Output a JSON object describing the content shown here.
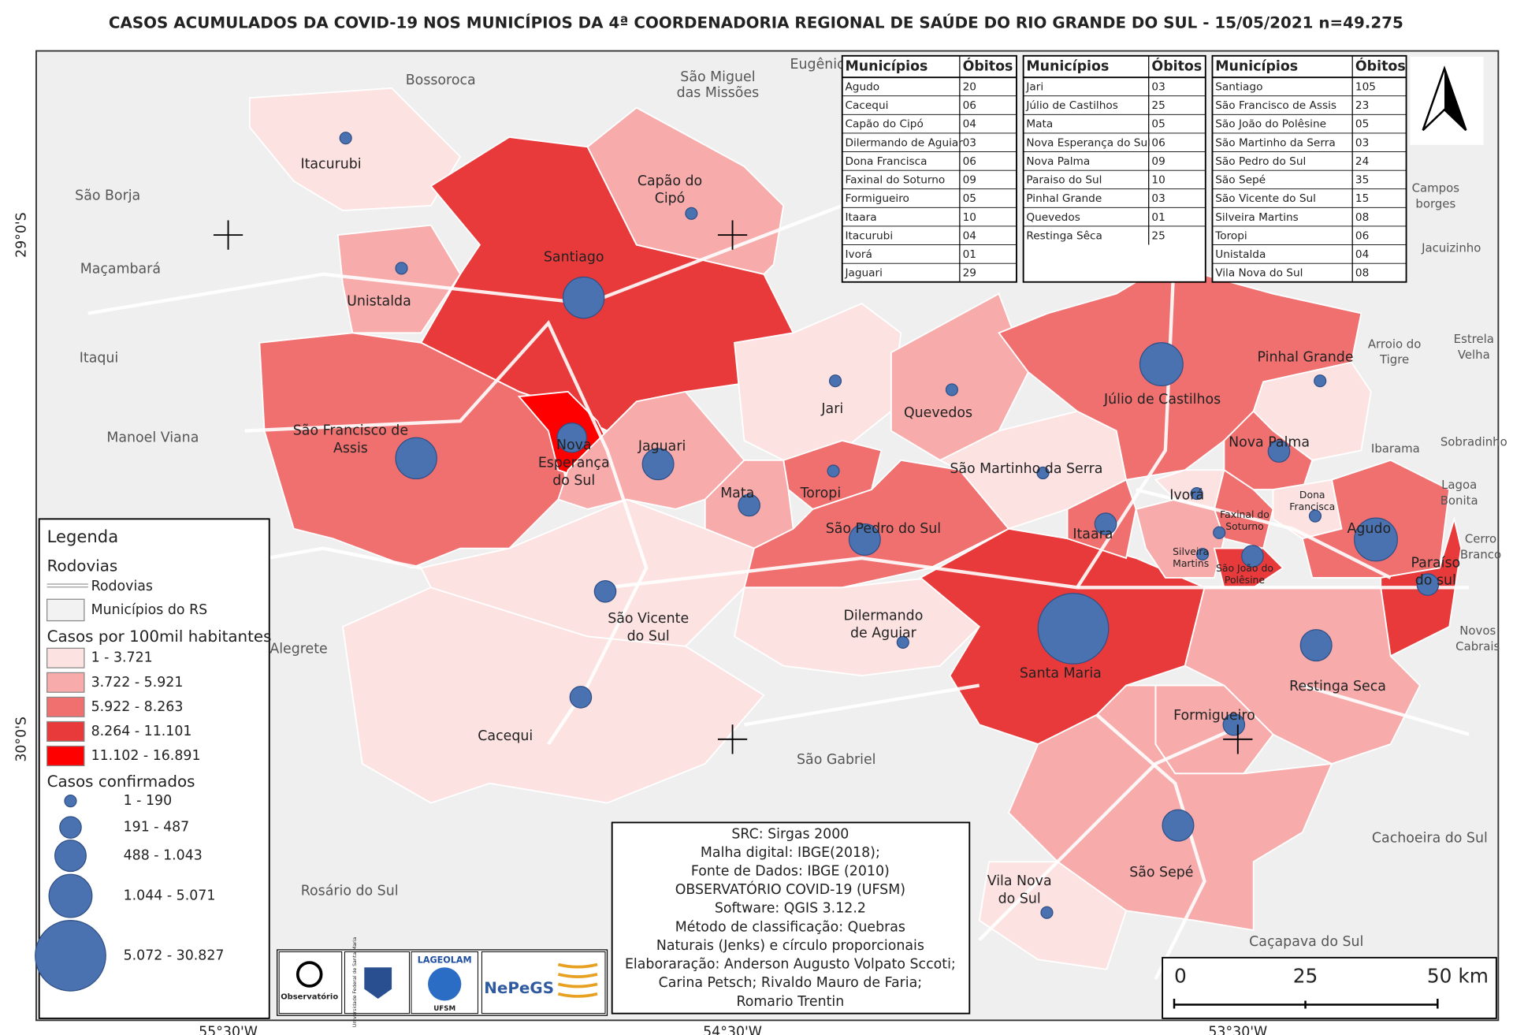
{
  "title": "CASOS ACUMULADOS DA COVID-19 NOS MUNICÍPIOS DA 4ª COORDENADORIA REGIONAL DE SAÚDE DO RIO GRANDE DO SUL - 15/05/2021 n=49.275",
  "tables": [
    {
      "headers": [
        "Municípios",
        "Óbitos"
      ],
      "rows": [
        [
          "Agudo",
          "20"
        ],
        [
          "Cacequi",
          "06"
        ],
        [
          "Capão do Cipó",
          "04"
        ],
        [
          "Dilermando de Aguiar",
          "03"
        ],
        [
          "Dona Francisca",
          "06"
        ],
        [
          "Faxinal do Soturno",
          "09"
        ],
        [
          "Formigueiro",
          "05"
        ],
        [
          "Itaara",
          "10"
        ],
        [
          "Itacurubi",
          "04"
        ],
        [
          "Ivorá",
          "01"
        ],
        [
          "Jaguari",
          "29"
        ]
      ]
    },
    {
      "headers": [
        "Municípios",
        "Óbitos"
      ],
      "rows": [
        [
          "Jari",
          "03"
        ],
        [
          "Júlio de Castilhos",
          "25"
        ],
        [
          "Mata",
          "05"
        ],
        [
          "Nova Esperança do Sul",
          "06"
        ],
        [
          "Nova Palma",
          "09"
        ],
        [
          "Paraiso do Sul",
          "10"
        ],
        [
          "Pinhal Grande",
          "03"
        ],
        [
          "Quevedos",
          "01"
        ],
        [
          "Restinga Sêca",
          "25"
        ]
      ]
    },
    {
      "headers": [
        "Municípios",
        "Óbitos"
      ],
      "rows": [
        [
          "Santiago",
          "105"
        ],
        [
          "São Francisco de Assis",
          "23"
        ],
        [
          "São João do Polêsine",
          "05"
        ],
        [
          "São Martinho da Serra",
          "03"
        ],
        [
          "São Pedro do Sul",
          "24"
        ],
        [
          "São Sepé",
          "35"
        ],
        [
          "São Vicente do Sul",
          "15"
        ],
        [
          "Silveira Martins",
          "08"
        ],
        [
          "Toropi",
          "06"
        ],
        [
          "Unistalda",
          "04"
        ],
        [
          "Vila Nova do Sul",
          "08"
        ]
      ]
    }
  ],
  "municipalities": [
    {
      "lines": [
        "Itacurubi"
      ]
    },
    {
      "lines": [
        "Santiago"
      ]
    },
    {
      "lines": [
        "Unistalda"
      ]
    },
    {
      "lines": [
        "Capão do",
        "Cipó"
      ]
    },
    {
      "lines": [
        "São Francisco de",
        "Assis"
      ]
    },
    {
      "lines": [
        "Nova",
        "Esperança",
        "do Sul"
      ]
    },
    {
      "lines": [
        "Jaguari"
      ]
    },
    {
      "lines": [
        "Jari"
      ]
    },
    {
      "lines": [
        "Quevedos"
      ]
    },
    {
      "lines": [
        "Toropi"
      ]
    },
    {
      "lines": [
        "Mata"
      ]
    },
    {
      "lines": [
        "São Pedro do Sul"
      ]
    },
    {
      "lines": [
        "São Vicente",
        "do Sul"
      ]
    },
    {
      "lines": [
        "Cacequi"
      ]
    },
    {
      "lines": [
        "Dilermando",
        "de Aguiar"
      ]
    },
    {
      "lines": [
        "Santa Maria"
      ]
    },
    {
      "lines": [
        "São Martinho da Serra"
      ]
    },
    {
      "lines": [
        "Júlio de Castilhos"
      ]
    },
    {
      "lines": [
        "Pinhal Grande"
      ]
    },
    {
      "lines": [
        "Nova Palma"
      ]
    },
    {
      "lines": [
        "Itaara"
      ]
    },
    {
      "lines": [
        "Ivorá"
      ]
    },
    {
      "lines": [
        "Faxinal do",
        "Soturno"
      ]
    },
    {
      "lines": [
        "Dona",
        "Francisca"
      ]
    },
    {
      "lines": [
        "Silveira",
        "Martins"
      ]
    },
    {
      "lines": [
        "São João do",
        "Polêsine"
      ]
    },
    {
      "lines": [
        "Agudo"
      ]
    },
    {
      "lines": [
        "Paraíso",
        "do sul"
      ]
    },
    {
      "lines": [
        "Restinga Seca"
      ]
    },
    {
      "lines": [
        "Formigueiro"
      ]
    },
    {
      "lines": [
        "São Sepé"
      ]
    },
    {
      "lines": [
        "Vila Nova",
        "do Sul"
      ]
    }
  ],
  "neighbors": [
    {
      "lines": [
        "Bossoroca"
      ]
    },
    {
      "lines": [
        "São Miguel",
        "das Missões"
      ]
    },
    {
      "lines": [
        "Eugênio"
      ]
    },
    {
      "lines": [
        "São Borja"
      ]
    },
    {
      "lines": [
        "Maçambará"
      ]
    },
    {
      "lines": [
        "Itaqui"
      ]
    },
    {
      "lines": [
        "Manoel Viana"
      ]
    },
    {
      "lines": [
        "Alegrete"
      ]
    },
    {
      "lines": [
        "Rosário do Sul"
      ]
    },
    {
      "lines": [
        "São Gabriel"
      ]
    },
    {
      "lines": [
        "Cachoeira do Sul"
      ]
    },
    {
      "lines": [
        "Caçapava do Sul"
      ]
    },
    {
      "lines": [
        "Campos",
        "borges"
      ]
    },
    {
      "lines": [
        "Jacuizinho"
      ]
    },
    {
      "lines": [
        "Arroio do",
        "Tigre"
      ]
    },
    {
      "lines": [
        "Estrela",
        "Velha"
      ]
    },
    {
      "lines": [
        "Ibarama"
      ]
    },
    {
      "lines": [
        "Sobradinho"
      ]
    },
    {
      "lines": [
        "Lagoa",
        "Bonita"
      ]
    },
    {
      "lines": [
        "Cerro",
        "Branco"
      ]
    },
    {
      "lines": [
        "Novos",
        "Cabrais"
      ]
    }
  ],
  "legend": {
    "title": "Legenda",
    "roads_title": "Rodovias",
    "roads": "Rodovias",
    "municipalities": "Municípios do RS",
    "rate_title": "Casos por 100mil habitantes",
    "rate_classes": [
      "1 - 3.721",
      "3.722 - 5.921",
      "5.922 - 8.263",
      "8.264 - 11.101",
      "11.102 - 16.891"
    ],
    "cases_title": "Casos confirmados",
    "case_classes": [
      "1 - 190",
      "191 - 487",
      "488 - 1.043",
      "1.044 - 5.071",
      "5.072 - 30.827"
    ]
  },
  "info": [
    "SRC: Sirgas 2000",
    "Malha digital: IBGE(2018);",
    "Fonte de Dados: IBGE (2010)",
    "OBSERVATÓRIO COVID-19 (UFSM)",
    "Software: QGIS 3.12.2",
    "Método de classificação: Quebras",
    "Naturais (Jenks) e círculo proporcionais",
    "Elaboraração: Anderson Augusto Volpato Sccoti;",
    "Carina Petsch; Rivaldo Mauro de Faria;",
    "Romario Trentin"
  ],
  "logos": [
    "Observatório",
    "Universidade Federal de Santa Maria",
    "LAGEOLAM",
    "UFSM",
    "NePeGS"
  ],
  "scale": [
    "0",
    "25",
    "50 km"
  ],
  "coords": {
    "lat": [
      "29°0'S",
      "30°0'S"
    ],
    "lon": [
      "55°30'W",
      "54°30'W",
      "53°30'W"
    ]
  }
}
